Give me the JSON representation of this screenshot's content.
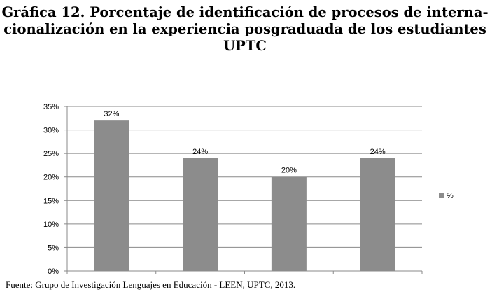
{
  "title_lines": [
    "Gráfica 12. Porcentaje de identificación de procesos de interna-",
    "cionalización en la experiencia posgraduada de los estudiantes",
    "UPTC"
  ],
  "source": "Fuente: Grupo de Investigación Lenguajes en Educación - LEEN, UPTC, 2013.",
  "chart_data": {
    "type": "bar",
    "categories": [
      "",
      "",
      "",
      ""
    ],
    "series": [
      {
        "name": "%",
        "values": [
          32,
          24,
          20,
          24
        ],
        "color": "#8c8c8c"
      }
    ],
    "data_labels": [
      "32%",
      "24%",
      "20%",
      "24%"
    ],
    "ylim": [
      0,
      35
    ],
    "yticks": [
      0,
      5,
      10,
      15,
      20,
      25,
      30,
      35
    ],
    "ytick_labels": [
      "0%",
      "5%",
      "10%",
      "15%",
      "20%",
      "25%",
      "30%",
      "35%"
    ],
    "grid": true,
    "legend": "right"
  }
}
